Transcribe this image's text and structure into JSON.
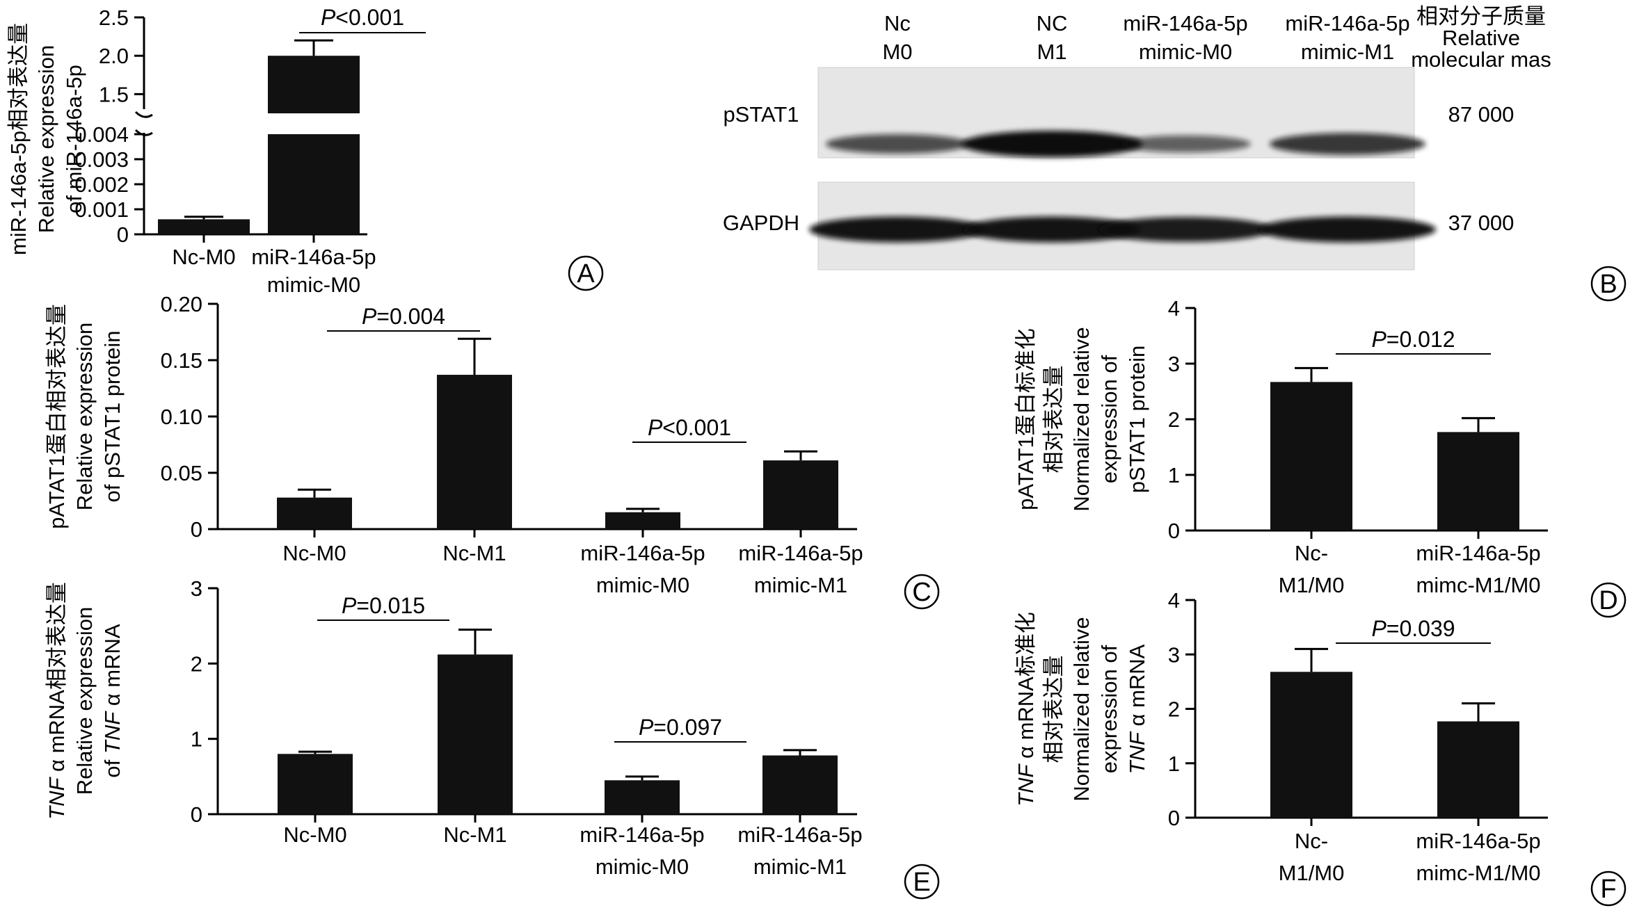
{
  "chart_data": [
    {
      "id": "A",
      "type": "bar",
      "panel_letter": "A",
      "ylabel_cn": "miR-146a-5p相对表达量",
      "ylabel_lines": [
        "Relative expression",
        "of miR-146a-5p"
      ],
      "axis_break": true,
      "lower_ylim": [
        0,
        0.004
      ],
      "lower_ticks": [
        "0",
        "0.001",
        "0.002",
        "0.003",
        "0.004"
      ],
      "upper_ylim": [
        1.25,
        2.5
      ],
      "upper_ticks": [
        "1.5",
        "2.0",
        "2.5"
      ],
      "categories": [
        [
          "Nc-M0"
        ],
        [
          "miR-146a-5p",
          "mimic-M0"
        ]
      ],
      "values": [
        0.0006,
        2.0
      ],
      "errors": [
        0.0001,
        0.2
      ],
      "comparisons": [
        {
          "pair": [
            0,
            1
          ],
          "label_italic": "P",
          "label_rest": "<0.001"
        }
      ]
    },
    {
      "id": "C",
      "type": "bar",
      "panel_letter": "C",
      "ylabel_cn": "pATAT1蛋白相对表达量",
      "ylabel_lines": [
        "Relative expression",
        "of pSTAT1 protein"
      ],
      "ylim": [
        0,
        0.2
      ],
      "ticks": [
        "0",
        "0.05",
        "0.10",
        "0.15",
        "0.20"
      ],
      "categories": [
        [
          "Nc-M0"
        ],
        [
          "Nc-M1"
        ],
        [
          "miR-146a-5p",
          "mimic-M0"
        ],
        [
          "miR-146a-5p",
          "mimic-M1"
        ]
      ],
      "values": [
        0.028,
        0.137,
        0.015,
        0.061
      ],
      "errors": [
        0.007,
        0.032,
        0.003,
        0.008
      ],
      "comparisons": [
        {
          "pair": [
            0,
            1
          ],
          "label_italic": "P",
          "label_rest": "=0.004"
        },
        {
          "pair": [
            2,
            3
          ],
          "label_italic": "P",
          "label_rest": "<0.001"
        }
      ]
    },
    {
      "id": "D",
      "type": "bar",
      "panel_letter": "D",
      "ylabel_cn_lines": [
        "pATAT1蛋白标准化",
        "相对表达量"
      ],
      "ylabel_lines": [
        "Normalized relative",
        "expression of",
        "pSTAT1 protein"
      ],
      "ylim": [
        0,
        4
      ],
      "ticks": [
        "0",
        "1",
        "2",
        "3",
        "4"
      ],
      "categories": [
        [
          "Nc-",
          "M1/M0"
        ],
        [
          "miR-146a-5p",
          "mimc-M1/M0"
        ]
      ],
      "values": [
        2.67,
        1.77
      ],
      "errors": [
        0.25,
        0.25
      ],
      "comparisons": [
        {
          "pair": [
            0,
            1
          ],
          "label_italic": "P",
          "label_rest": "=0.012"
        }
      ]
    },
    {
      "id": "E",
      "type": "bar",
      "panel_letter": "E",
      "ylabel_first": {
        "italic": "TNF",
        "rest": " α mRNA相对表达量"
      },
      "ylabel_second": "Relative expression",
      "ylabel_third": {
        "before": "of ",
        "italic": "TNF",
        "after": " α mRNA"
      },
      "ylim": [
        0,
        3
      ],
      "ticks": [
        "0",
        "1",
        "2",
        "3"
      ],
      "categories": [
        [
          "Nc-M0"
        ],
        [
          "Nc-M1"
        ],
        [
          "miR-146a-5p",
          "mimic-M0"
        ],
        [
          "miR-146a-5p",
          "mimic-M1"
        ]
      ],
      "values": [
        0.8,
        2.12,
        0.45,
        0.78
      ],
      "errors": [
        0.03,
        0.33,
        0.05,
        0.07
      ],
      "comparisons": [
        {
          "pair": [
            0,
            1
          ],
          "label_italic": "P",
          "label_rest": "=0.015"
        },
        {
          "pair": [
            2,
            3
          ],
          "label_italic": "P",
          "label_rest": "=0.097"
        }
      ]
    },
    {
      "id": "F",
      "type": "bar",
      "panel_letter": "F",
      "ylabel_first": {
        "italic": "TNF",
        "rest": " α mRNA标准化"
      },
      "ylabel_cn2": "相对表达量",
      "ylabel_plain": [
        "Normalized relative",
        "expression of"
      ],
      "ylabel_last": {
        "italic": "TNF",
        "rest": " α mRNA"
      },
      "ylim": [
        0,
        4
      ],
      "ticks": [
        "0",
        "1",
        "2",
        "3",
        "4"
      ],
      "categories": [
        [
          "Nc-",
          "M1/M0"
        ],
        [
          "miR-146a-5p",
          "mimc-M1/M0"
        ]
      ],
      "values": [
        2.68,
        1.77
      ],
      "errors": [
        0.42,
        0.33
      ],
      "comparisons": [
        {
          "pair": [
            0,
            1
          ],
          "label_italic": "P",
          "label_rest": "=0.039"
        }
      ]
    }
  ],
  "western_blot": {
    "panel_letter": "B",
    "lane_labels": [
      [
        "Nc",
        "M0"
      ],
      [
        "NC",
        "M1"
      ],
      [
        "miR-146a-5p",
        "mimic-M0"
      ],
      [
        "miR-146a-5p",
        "mimic-M1"
      ]
    ],
    "mass_header": [
      "相对分子质量",
      "Relative",
      "molecular mas"
    ],
    "rows": [
      {
        "protein": "pSTAT1",
        "mass": "87 000",
        "band_intensity": [
          0.55,
          1.0,
          0.4,
          0.7
        ]
      },
      {
        "protein": "GAPDH",
        "mass": "37 000",
        "band_intensity": [
          0.95,
          0.95,
          0.9,
          0.95
        ]
      }
    ]
  }
}
